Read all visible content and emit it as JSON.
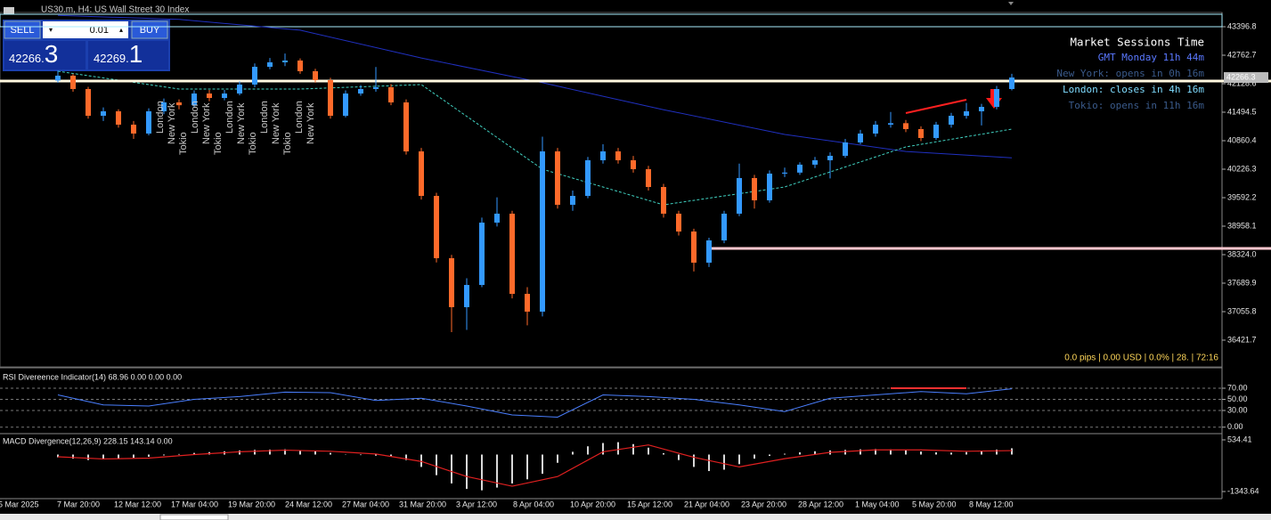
{
  "window": {
    "title": "US30.m, H4: US Wall Street 30 Index"
  },
  "trade_panel": {
    "sell": "SELL",
    "lot": "0.01",
    "buy": "BUY",
    "bid_main": "42266.",
    "bid_big": "3",
    "ask_main": "42269.",
    "ask_big": "1"
  },
  "sessions_panel": {
    "title": "Market Sessions Time",
    "gmt": "GMT Monday 11h 44m",
    "new_york": "New York: opens in 0h 16m",
    "london": "London: closes in 4h 16m",
    "tokio": "Tokio: opens in 11h 16m"
  },
  "session_labels": [
    "London",
    "New York",
    "Tokio",
    "London",
    "New York",
    "Tokio",
    "London",
    "New York",
    "Tokio",
    "London",
    "New York",
    "Tokio",
    "London",
    "New York"
  ],
  "status": "0.0 pips | 0.00 USD | 0.0% | 28. | 72:16",
  "time_axis": [
    "5 Mar 2025",
    "7 Mar 20:00",
    "12 Mar 12:00",
    "17 Mar 04:00",
    "19 Mar 20:00",
    "24 Mar 12:00",
    "27 Mar 04:00",
    "31 Mar 20:00",
    "3 Apr 12:00",
    "8 Apr 04:00",
    "10 Apr 20:00",
    "15 Apr 12:00",
    "21 Apr 04:00",
    "23 Apr 20:00",
    "28 Apr 12:00",
    "1 May 04:00",
    "5 May 20:00",
    "8 May 12:00"
  ],
  "chart_data": [
    {
      "type": "candlestick",
      "ylim": [
        35827.2,
        43713.9
      ],
      "yticks": [
        43396.8,
        42762.7,
        {
          "value": 42128.6,
          "label": "42128.6"
        },
        41494.5,
        40860.4,
        40226.3,
        39592.2,
        38958.1,
        {
          "value": 38324,
          "label": "38324.0"
        },
        37689.9,
        37055.8,
        36421.7
      ],
      "up_color": "#3399ff",
      "down_color": "#ff6a2a",
      "last_price": 42266.3,
      "candles": [
        [
          42200,
          42420,
          42150,
          42307
        ],
        [
          42307,
          42350,
          41950,
          42010
        ],
        [
          42010,
          42060,
          41350,
          41415
        ],
        [
          41415,
          41600,
          41300,
          41514
        ],
        [
          41514,
          41560,
          41150,
          41217
        ],
        [
          41217,
          41300,
          40900,
          41019
        ],
        [
          41019,
          41580,
          40980,
          41514
        ],
        [
          41514,
          41800,
          41450,
          41712
        ],
        [
          41712,
          41780,
          41560,
          41650
        ],
        [
          41650,
          41980,
          41600,
          41910
        ],
        [
          41910,
          41990,
          41740,
          41811
        ],
        [
          41811,
          41990,
          41760,
          41910
        ],
        [
          41910,
          42180,
          41870,
          42109
        ],
        [
          42109,
          42580,
          42050,
          42505
        ],
        [
          42505,
          42700,
          42450,
          42604
        ],
        [
          42604,
          42800,
          42520,
          42644
        ],
        [
          42644,
          42690,
          42350,
          42406
        ],
        [
          42406,
          42460,
          42150,
          42208
        ],
        [
          42208,
          42260,
          41350,
          41415
        ],
        [
          41415,
          41980,
          41380,
          41910
        ],
        [
          41910,
          42100,
          41860,
          42010
        ],
        [
          42010,
          42500,
          41950,
          42050
        ],
        [
          42050,
          42120,
          41650,
          41712
        ],
        [
          41712,
          41780,
          40550,
          40622
        ],
        [
          40622,
          40700,
          39550,
          39632
        ],
        [
          39632,
          39700,
          38150,
          38245
        ],
        [
          38245,
          38320,
          36600,
          37155
        ],
        [
          37155,
          37800,
          36650,
          37650
        ],
        [
          37650,
          39150,
          37600,
          39037
        ],
        [
          39037,
          39600,
          38950,
          39236
        ],
        [
          39236,
          39300,
          37350,
          37452
        ],
        [
          37452,
          37600,
          36750,
          37056
        ],
        [
          37056,
          40950,
          36950,
          40622
        ],
        [
          40622,
          40700,
          39350,
          39434
        ],
        [
          39434,
          39750,
          39300,
          39632
        ],
        [
          39632,
          40500,
          39580,
          40425
        ],
        [
          40425,
          40780,
          40350,
          40622
        ],
        [
          40622,
          40700,
          40350,
          40425
        ],
        [
          40425,
          40520,
          40150,
          40226
        ],
        [
          40226,
          40300,
          39750,
          39830
        ],
        [
          39830,
          39900,
          39150,
          39236
        ],
        [
          39236,
          39300,
          38750,
          38839
        ],
        [
          38839,
          38900,
          37950,
          38146
        ],
        [
          38146,
          38700,
          38050,
          38641
        ],
        [
          38641,
          39300,
          38580,
          39236
        ],
        [
          39236,
          40350,
          39180,
          40029
        ],
        [
          40029,
          40100,
          39350,
          39533
        ],
        [
          39533,
          40200,
          39480,
          40128
        ],
        [
          40128,
          40260,
          40050,
          40150
        ],
        [
          40150,
          40380,
          40100,
          40327
        ],
        [
          40327,
          40500,
          40250,
          40425
        ],
        [
          40425,
          40600,
          40020,
          40524
        ],
        [
          40524,
          40900,
          40480,
          40821
        ],
        [
          40821,
          41100,
          40780,
          41019
        ],
        [
          41019,
          41300,
          40950,
          41217
        ],
        [
          41217,
          41500,
          41150,
          41250
        ],
        [
          41250,
          41320,
          41050,
          41118
        ],
        [
          41118,
          41180,
          40850,
          40920
        ],
        [
          40920,
          41280,
          40880,
          41217
        ],
        [
          41217,
          41480,
          41150,
          41415
        ],
        [
          41415,
          41700,
          41350,
          41514
        ],
        [
          41514,
          41680,
          41200,
          41613
        ],
        [
          41613,
          42080,
          41560,
          42010
        ],
        [
          42010,
          42350,
          41980,
          42266
        ]
      ],
      "overlays": [
        {
          "color": "#2030c0",
          "dash": false,
          "x": [
            0,
            8,
            16,
            24,
            32,
            40,
            48,
            56,
            63
          ],
          "values": [
            43650,
            43560,
            43320,
            42700,
            42150,
            41550,
            41000,
            40620,
            40480
          ]
        },
        {
          "color": "#40d0c0",
          "dash": true,
          "x": [
            0,
            8,
            16,
            24,
            32,
            40,
            48,
            56,
            63
          ],
          "values": [
            42406,
            42010,
            42010,
            42109,
            40226,
            39433,
            39830,
            40722,
            41118
          ]
        }
      ],
      "levels": [
        {
          "value": 42188,
          "color": "#fff8e0",
          "start": 0
        },
        {
          "value": 38462,
          "color": "#ffc8d0",
          "start": 43
        }
      ],
      "zone": [
        43396.8,
        43674
      ],
      "trendlines": [
        {
          "color": "#ff2020",
          "x": [
            56,
            60
          ],
          "values": [
            41475,
            41772
          ]
        }
      ]
    },
    {
      "type": "line",
      "title": "RSI Divereence Indicator(14) 68.96 0.00 0.00 0.00",
      "ylim": [
        -10,
        102
      ],
      "grid": true,
      "yticks": [
        {
          "value": 70,
          "label": "70.00"
        },
        {
          "value": 50,
          "label": "50.00"
        },
        {
          "value": 30,
          "label": "30.00"
        },
        {
          "value": 0,
          "label": "0.00"
        }
      ],
      "x": [
        0,
        3,
        6,
        9,
        12,
        15,
        18,
        21,
        24,
        27,
        30,
        33,
        36,
        39,
        42,
        45,
        48,
        51,
        54,
        57,
        60,
        63
      ],
      "series": [
        {
          "color": "#4a7fff",
          "values": [
            58,
            40,
            38,
            50,
            55,
            63,
            62,
            48,
            52,
            38,
            22,
            18,
            58,
            55,
            50,
            40,
            28,
            52,
            58,
            64,
            60,
            69
          ]
        }
      ],
      "trendlines": [
        {
          "color": "#ff3030",
          "x": [
            55,
            60
          ],
          "values": [
            70,
            70
          ]
        }
      ]
    },
    {
      "type": "bar",
      "title": "MACD Divergence(12,26,9) 228.15 143.14 0.00",
      "ylim": [
        -1602,
        728
      ],
      "color": "#d8d8d8",
      "yticks": [
        534.41,
        -1343.64
      ],
      "values": [
        -100,
        -150,
        -200,
        -180,
        -150,
        -120,
        -80,
        -30,
        20,
        60,
        90,
        120,
        150,
        170,
        180,
        190,
        160,
        120,
        60,
        10,
        -20,
        -40,
        -60,
        -200,
        -450,
        -750,
        -1050,
        -1250,
        -1300,
        -1200,
        -1050,
        -900,
        -700,
        -300,
        100,
        300,
        420,
        450,
        380,
        250,
        50,
        -200,
        -450,
        -600,
        -550,
        -350,
        -150,
        -50,
        30,
        80,
        120,
        150,
        170,
        190,
        200,
        190,
        160,
        110,
        80,
        70,
        90,
        130,
        180,
        228
      ],
      "signal": {
        "color": "#e02020",
        "x": [
          0,
          3,
          6,
          9,
          12,
          15,
          18,
          21,
          24,
          27,
          30,
          33,
          36,
          39,
          42,
          45,
          48,
          51,
          54,
          57,
          60,
          63
        ],
        "values": [
          -80,
          -160,
          -130,
          0,
          100,
          160,
          120,
          20,
          -250,
          -800,
          -1150,
          -800,
          100,
          350,
          -100,
          -450,
          -150,
          80,
          170,
          170,
          120,
          143
        ]
      }
    }
  ]
}
